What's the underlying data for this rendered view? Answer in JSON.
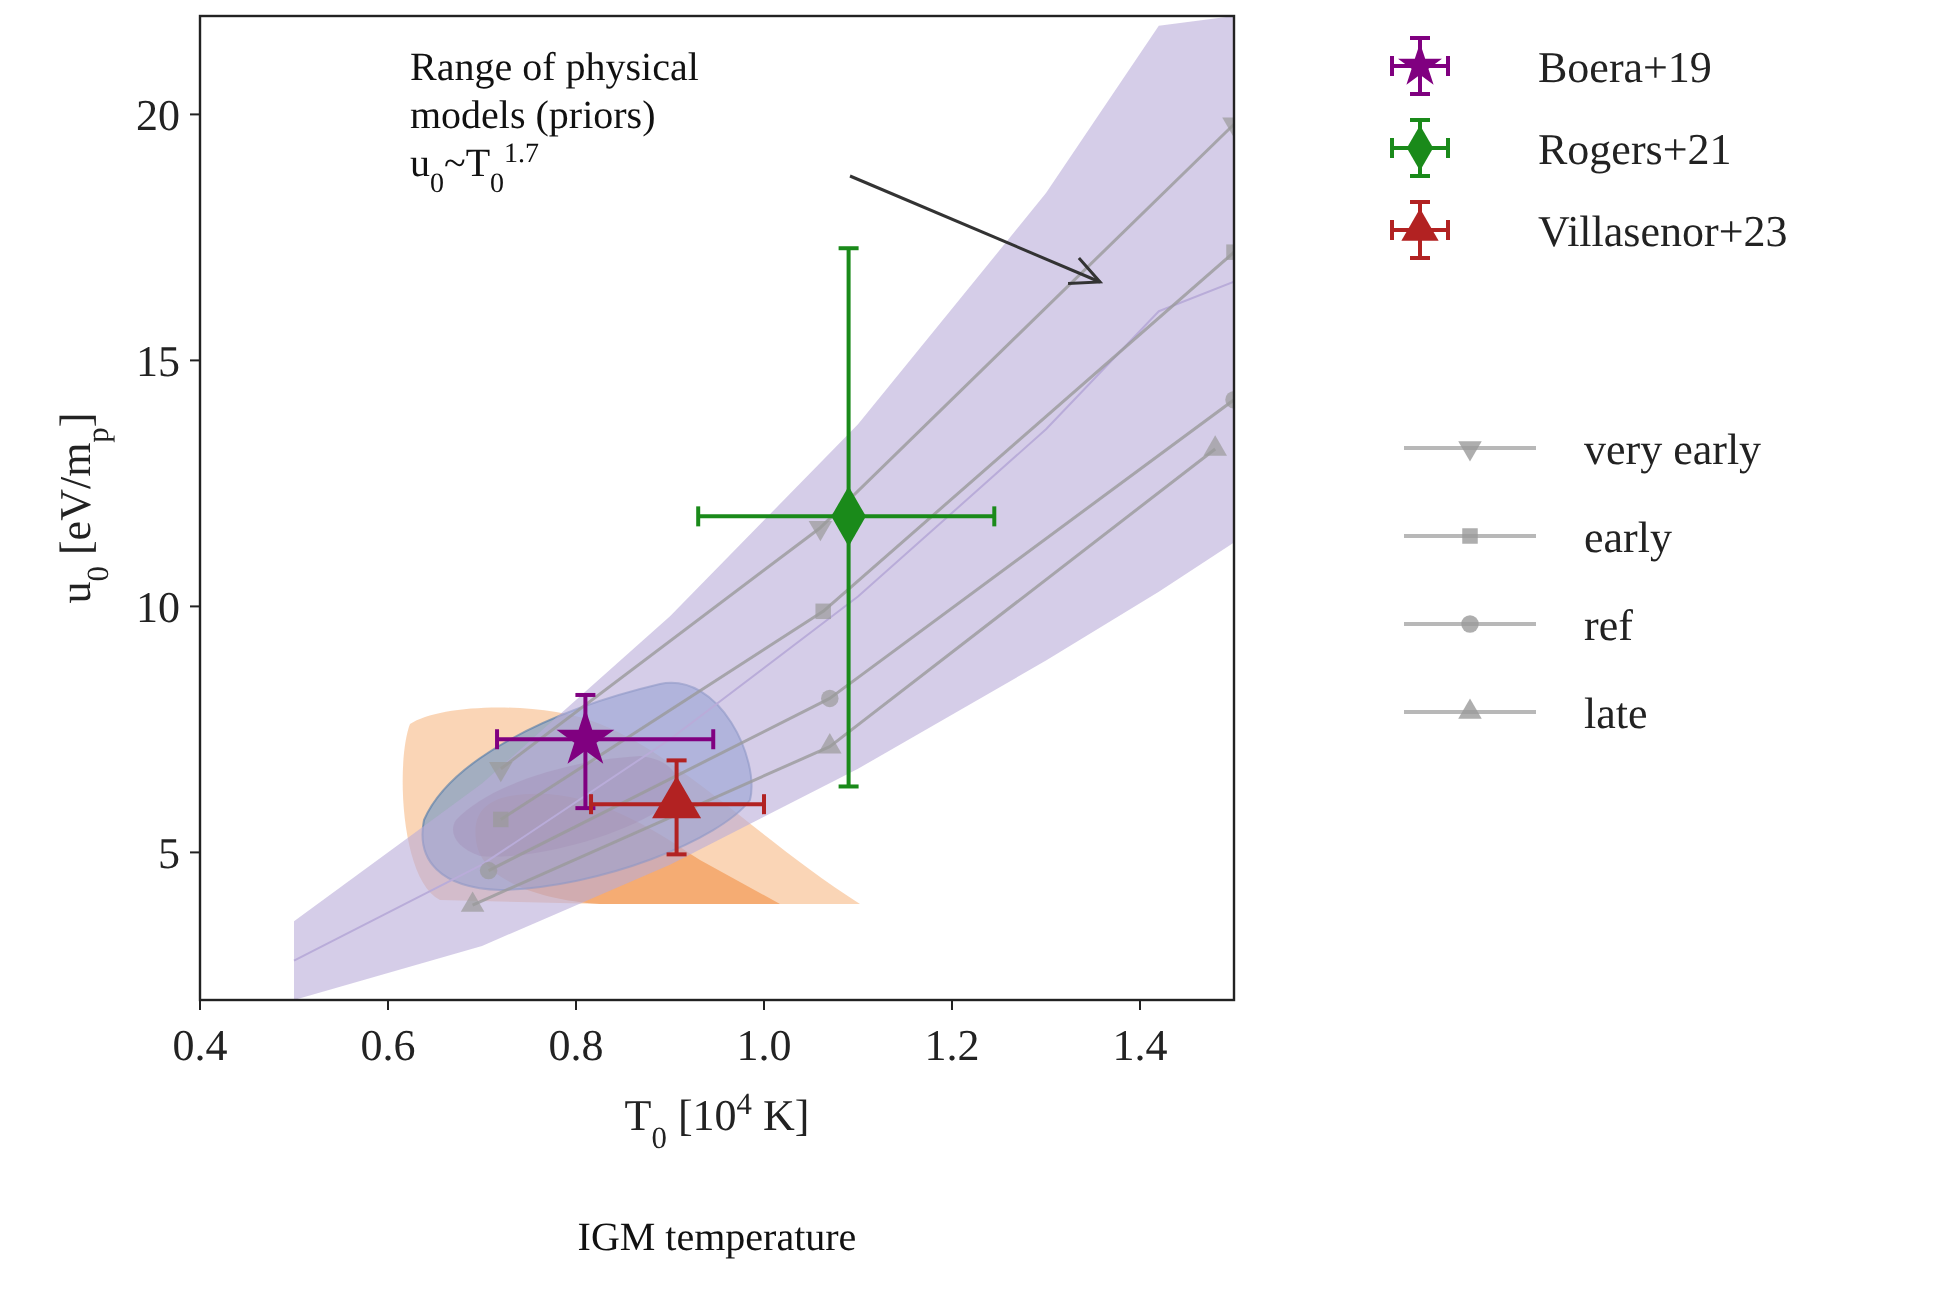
{
  "chart_data": {
    "type": "scatter",
    "xlabel": "T$_{0}$ [10$^{4}$ K]",
    "ylabel": "u$_{0}$ [eV/m$_{p}$]",
    "xlim": [
      0.4,
      1.5
    ],
    "ylim": [
      2,
      22
    ],
    "xticks": [
      0.4,
      0.6,
      0.8,
      {
        "value": 1,
        "label": "1.0"
      },
      1.2,
      1.4
    ],
    "yticks": [
      5,
      10,
      15,
      20
    ],
    "grid": false,
    "legend": "right",
    "annotations": [
      "Range of  physical\nmodels (priors)\nu$_{0}$~T$_{0}$$^{1.7}$",
      "IGM temperature"
    ],
    "series": [
      {
        "type": "line",
        "color": "#b9acd9",
        "x": [
          0.5,
          0.7,
          0.9,
          1.1,
          1.3,
          1.42,
          1.5
        ],
        "lower": [
          2.0,
          3.1,
          4.75,
          6.7,
          8.9,
          10.3,
          11.3
        ],
        "upper": [
          3.6,
          6.4,
          9.8,
          13.7,
          18.4,
          21.8,
          22
        ],
        "values": [
          2.8,
          4.75,
          7.3,
          10.2,
          13.6,
          16,
          16.6
        ]
      },
      {
        "type": "line",
        "name": "very early",
        "color": "#9a9a9a",
        "marker": "triangle-down",
        "x": [
          0.72,
          1.06,
          1.5
        ],
        "values": [
          6.7,
          11.6,
          19.8
        ]
      },
      {
        "type": "line",
        "name": "early",
        "color": "#9a9a9a",
        "marker": "square",
        "x": [
          0.72,
          1.063,
          1.5
        ],
        "values": [
          5.67,
          9.9,
          17.2
        ]
      },
      {
        "type": "line",
        "name": "ref",
        "color": "#9a9a9a",
        "marker": "circle",
        "x": [
          0.707,
          1.07,
          1.5
        ],
        "values": [
          4.63,
          8.13,
          14.2
        ]
      },
      {
        "type": "line",
        "name": "late",
        "color": "#9a9a9a",
        "marker": "triangle",
        "x": [
          0.69,
          1.07,
          1.48
        ],
        "values": [
          3.93,
          7.15,
          13.2
        ]
      },
      {
        "name": "Boera+19",
        "color": "#800080",
        "marker": "star",
        "x": [
          0.81
        ],
        "values": [
          7.3
        ],
        "errors": [
          [
            5.9,
            8.2
          ]
        ],
        "xerrors": [
          [
            0.716,
            0.946
          ]
        ]
      },
      {
        "name": "Rogers+21",
        "color": "#1a8a1a",
        "marker": "diamond",
        "x": [
          1.09
        ],
        "values": [
          11.83
        ],
        "errors": [
          [
            6.34,
            17.28
          ]
        ],
        "xerrors": [
          [
            0.93,
            1.245
          ]
        ]
      },
      {
        "name": "Villasenor+23",
        "color": "#b22222",
        "marker": "triangle",
        "x": [
          0.907
        ],
        "values": [
          5.98
        ],
        "errors": [
          [
            4.96,
            6.87
          ]
        ],
        "xerrors": [
          [
            0.816,
            1.0
          ]
        ]
      }
    ]
  }
}
